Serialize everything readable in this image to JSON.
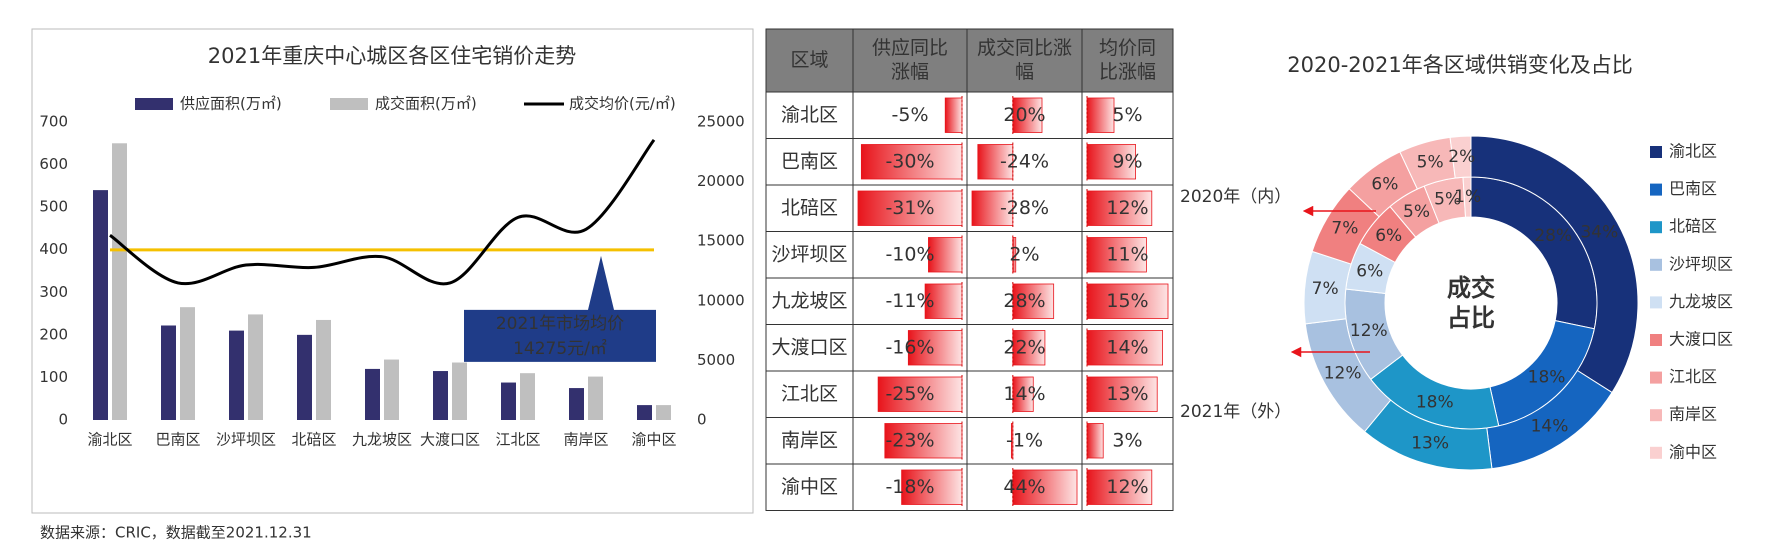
{
  "chart_data": [
    {
      "type": "bar",
      "title": "2021年重庆中心城区各区住宅销价走势",
      "categories": [
        "渝北区",
        "巴南区",
        "沙坪坝区",
        "北碚区",
        "九龙坡区",
        "大渡口区",
        "江北区",
        "南岸区",
        "渝中区"
      ],
      "series": [
        {
          "name": "供应面积(万㎡)",
          "type": "bar",
          "color": "#33306e",
          "values": [
            540,
            222,
            210,
            200,
            120,
            115,
            88,
            75,
            35
          ]
        },
        {
          "name": "成交面积(万㎡)",
          "type": "bar",
          "color": "#bfbfbf",
          "values": [
            650,
            265,
            248,
            235,
            142,
            135,
            110,
            102,
            35
          ]
        },
        {
          "name": "成交均价(元/㎡)",
          "type": "line",
          "axis": "y2",
          "color": "#000000",
          "values": [
            15500,
            11500,
            13000,
            12800,
            13700,
            11500,
            17000,
            16000,
            23500
          ]
        }
      ],
      "ylim": [
        0,
        700
      ],
      "yticks": [
        0,
        100,
        200,
        300,
        400,
        500,
        600,
        700
      ],
      "y2lim": [
        0,
        25000
      ],
      "y2ticks": [
        0,
        5000,
        10000,
        15000,
        20000,
        25000
      ],
      "avg_line": {
        "value": 14275,
        "axis": "y2",
        "color": "#f5c000",
        "label": [
          "2021年市场均价",
          "14275元/㎡"
        ]
      }
    },
    {
      "type": "donut",
      "title": "2020-2021年各区域供销变化及占比",
      "center_label": [
        "成交",
        "占比"
      ],
      "categories": [
        "渝北区",
        "巴南区",
        "北碚区",
        "沙坪坝区",
        "九龙坡区",
        "大渡口区",
        "江北区",
        "南岸区",
        "渝中区"
      ],
      "colors": [
        "#17317a",
        "#1565c0",
        "#1e96c8",
        "#a8c1e0",
        "#cfe0f3",
        "#f08080",
        "#f4a0a0",
        "#f7b8b8",
        "#fad0d0"
      ],
      "series": [
        {
          "name": "2020年（内）",
          "values": [
            28,
            18,
            18,
            12,
            6,
            6,
            5,
            5,
            1
          ],
          "value_labels": [
            "28%",
            "18%",
            "18%",
            "12%",
            "6%",
            "6%",
            "5%",
            "5%",
            "1%"
          ]
        },
        {
          "name": "2021年（外）",
          "values": [
            34,
            14,
            13,
            12,
            7,
            7,
            6,
            5,
            2
          ],
          "value_labels": [
            "34%",
            "14%",
            "13%",
            "12%",
            "7%",
            "7%",
            "6%",
            "5%",
            "2%"
          ]
        }
      ]
    }
  ],
  "table": {
    "header": [
      [
        "区域"
      ],
      [
        "供应同比",
        "涨幅"
      ],
      [
        "成交同比涨",
        "幅"
      ],
      [
        "均价同",
        "比涨幅"
      ]
    ],
    "rows": [
      {
        "region": "渝北区",
        "values": [
          -5,
          20,
          5
        ],
        "value_labels": [
          "-5%",
          "20%",
          "5%"
        ]
      },
      {
        "region": "巴南区",
        "values": [
          -30,
          -24,
          9
        ],
        "value_labels": [
          "-30%",
          "-24%",
          "9%"
        ]
      },
      {
        "region": "北碚区",
        "values": [
          -31,
          -28,
          12
        ],
        "value_labels": [
          "-31%",
          "-28%",
          "12%"
        ]
      },
      {
        "region": "沙坪坝区",
        "values": [
          -10,
          2,
          11
        ],
        "value_labels": [
          "-10%",
          "2%",
          "11%"
        ]
      },
      {
        "region": "九龙坡区",
        "values": [
          -11,
          28,
          15
        ],
        "value_labels": [
          "-11%",
          "28%",
          "15%"
        ]
      },
      {
        "region": "大渡口区",
        "values": [
          -16,
          22,
          14
        ],
        "value_labels": [
          "-16%",
          "22%",
          "14%"
        ]
      },
      {
        "region": "江北区",
        "values": [
          -25,
          14,
          13
        ],
        "value_labels": [
          "-25%",
          "14%",
          "13%"
        ]
      },
      {
        "region": "南岸区",
        "values": [
          -23,
          -1,
          3
        ],
        "value_labels": [
          "-23%",
          "-1%",
          "3%"
        ]
      },
      {
        "region": "渝中区",
        "values": [
          -18,
          44,
          12
        ],
        "value_labels": [
          "-18%",
          "44%",
          "12%"
        ]
      }
    ]
  },
  "source": "数据来源：CRIC，数据截至2021.12.31"
}
